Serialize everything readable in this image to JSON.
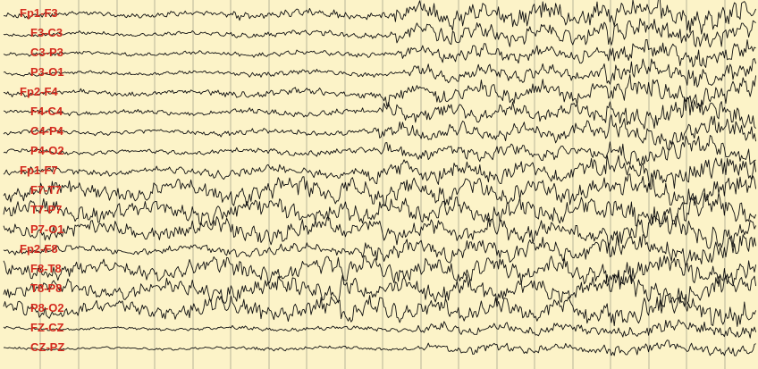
{
  "colors": {
    "background": "#FCF3C8",
    "grid": "#8A8A7A",
    "trace": "#111111",
    "label": "#D42A1E"
  },
  "channels": [
    {
      "label": "Fp1-F3",
      "activity": [
        0.22,
        0.35,
        0.85,
        1.0
      ],
      "onset": 0.52
    },
    {
      "label": "F3-C3",
      "activity": [
        0.16,
        0.25,
        0.7,
        0.85
      ],
      "onset": 0.52
    },
    {
      "label": "C3-P3",
      "activity": [
        0.15,
        0.22,
        0.55,
        0.85
      ],
      "onset": 0.53
    },
    {
      "label": "P3-O1",
      "activity": [
        0.15,
        0.22,
        0.55,
        0.85
      ],
      "onset": 0.53
    },
    {
      "label": "Fp2-F4",
      "activity": [
        0.22,
        0.3,
        0.7,
        1.0
      ],
      "onset": 0.5
    },
    {
      "label": "F4-C4",
      "activity": [
        0.18,
        0.25,
        0.6,
        0.95
      ],
      "onset": 0.5
    },
    {
      "label": "C4-P4",
      "activity": [
        0.18,
        0.25,
        0.6,
        0.95
      ],
      "onset": 0.5
    },
    {
      "label": "P4-O2",
      "activity": [
        0.18,
        0.25,
        0.55,
        0.9
      ],
      "onset": 0.5
    },
    {
      "label": "Fp1-F7",
      "activity": [
        0.3,
        0.4,
        0.75,
        1.0
      ],
      "onset": 0.48
    },
    {
      "label": "F7-T7",
      "activity": [
        0.65,
        0.8,
        0.8,
        1.0
      ],
      "onset": 0.45
    },
    {
      "label": "T7-P7",
      "activity": [
        0.65,
        0.8,
        0.8,
        1.0
      ],
      "onset": 0.45
    },
    {
      "label": "P7-O1",
      "activity": [
        0.6,
        0.75,
        0.75,
        1.0
      ],
      "onset": 0.45
    },
    {
      "label": "Fp2-F8",
      "activity": [
        0.3,
        0.4,
        0.7,
        1.0
      ],
      "onset": 0.48
    },
    {
      "label": "F8-T8",
      "activity": [
        0.6,
        0.75,
        0.75,
        1.0
      ],
      "onset": 0.45
    },
    {
      "label": "T8-P8",
      "activity": [
        0.6,
        0.75,
        0.75,
        1.0
      ],
      "onset": 0.45
    },
    {
      "label": "P8-O2",
      "activity": [
        0.55,
        0.75,
        0.75,
        1.0
      ],
      "onset": 0.45
    },
    {
      "label": "FZ-CZ",
      "activity": [
        0.12,
        0.18,
        0.4,
        0.55
      ],
      "onset": 0.55
    },
    {
      "label": "CZ-PZ",
      "activity": [
        0.1,
        0.15,
        0.35,
        0.45
      ],
      "onset": 0.55
    }
  ]
}
